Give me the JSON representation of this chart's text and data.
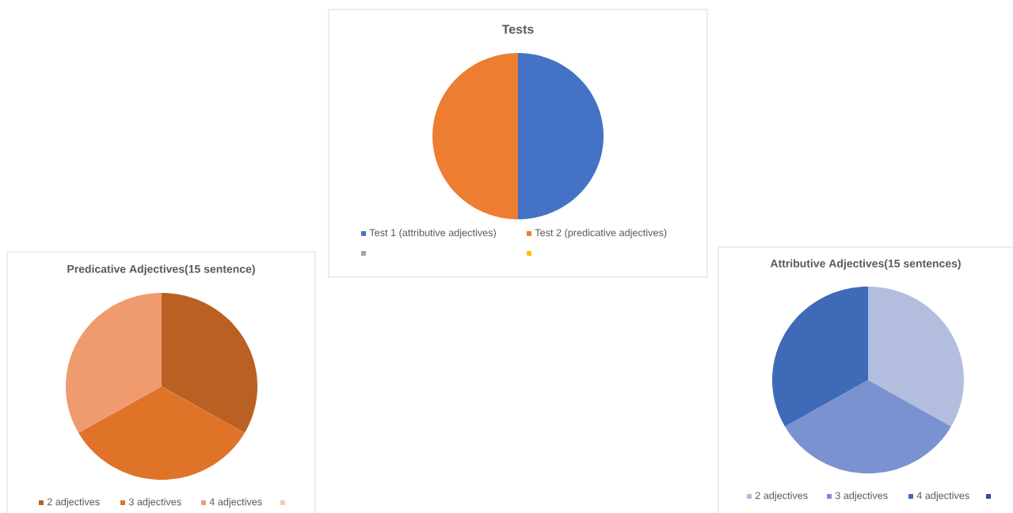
{
  "chart_data": [
    {
      "type": "pie",
      "title": "Tests",
      "categories": [
        "Test 1 (attributive adjectives)",
        "Test 2 (predicative adjectives)",
        null,
        null
      ],
      "values": [
        50,
        50,
        0,
        0
      ],
      "colors": [
        "#4472c4",
        "#ed7d31",
        "#a5a5a5",
        "#ffc000"
      ],
      "legend": "bottom"
    },
    {
      "type": "pie",
      "title": "Predicative Adjectives(15 sentence)",
      "categories": [
        "2 adjectives",
        "3 adjectives",
        "4 adjectives",
        null
      ],
      "values": [
        33.3,
        33.4,
        33.3,
        0
      ],
      "colors": [
        "#ba6022",
        "#df7428",
        "#f09a70",
        "#f8c8b4"
      ],
      "legend": "bottom"
    },
    {
      "type": "pie",
      "title": "Attributive Adjectives(15 sentences)",
      "categories": [
        "2 adjectives",
        "3 adjectives",
        "4 adjectives",
        null
      ],
      "values": [
        33.3,
        33.4,
        33.3,
        0
      ],
      "colors": [
        "#b3bedf",
        "#7a92cf",
        "#3e6ab7",
        "#2f4f91"
      ],
      "legend": "bottom"
    }
  ]
}
